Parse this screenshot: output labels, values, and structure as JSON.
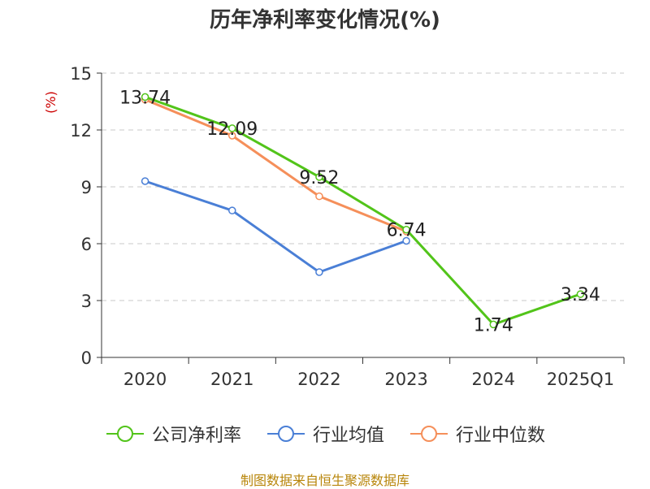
{
  "chart_data": {
    "type": "line",
    "title": "历年净利率变化情况(%)",
    "ylabel": "(%)",
    "ylim": [
      0,
      15
    ],
    "yticks": [
      0,
      3,
      6,
      9,
      12,
      15
    ],
    "categories": [
      "2020",
      "2021",
      "2022",
      "2023",
      "2024",
      "2025Q1"
    ],
    "grid": true,
    "legend_placement": "bottom",
    "series": [
      {
        "name": "公司净利率",
        "color": "#52c41a",
        "values": [
          13.74,
          12.09,
          9.52,
          6.74,
          1.74,
          3.34
        ],
        "labels": [
          "13.74",
          "12.09",
          "9.52",
          "6.74",
          "1.74",
          "3.34"
        ]
      },
      {
        "name": "行业均值",
        "color": "#4a7fd6",
        "values": [
          9.3,
          7.75,
          4.5,
          6.15,
          null,
          null
        ]
      },
      {
        "name": "行业中位数",
        "color": "#f58f5a",
        "values": [
          13.6,
          11.7,
          8.5,
          6.65,
          null,
          null
        ]
      }
    ]
  },
  "source": "制图数据来自恒生聚源数据库",
  "colors": {
    "axis_label": "#cc0000",
    "source": "#b8860b"
  }
}
